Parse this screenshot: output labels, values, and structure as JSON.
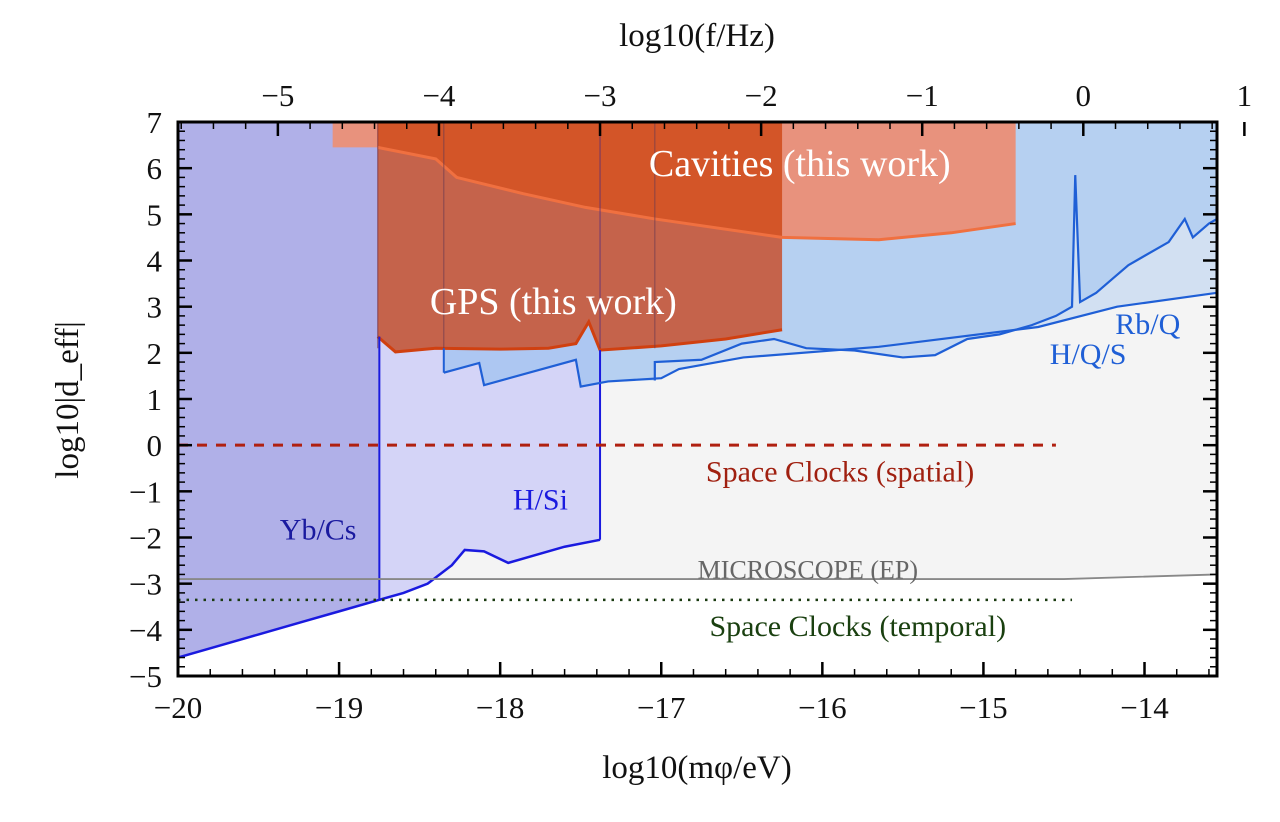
{
  "chart_data": {
    "type": "area",
    "title": "",
    "xlabel": "log10(mφ/eV)",
    "ylabel": "log10|d_eff|",
    "x2label": "log10(f/Hz)",
    "xlim": [
      -20,
      -13.55
    ],
    "ylim": [
      -5,
      7
    ],
    "x2lim": [
      -5.62,
      0.83
    ],
    "xticks": [
      -20,
      -19,
      -18,
      -17,
      -16,
      -15,
      -14
    ],
    "x2ticks": [
      -5,
      -4,
      -3,
      -2,
      -1,
      0,
      1
    ],
    "yticks": [
      -5,
      -4,
      -3,
      -2,
      -1,
      0,
      1,
      2,
      3,
      4,
      5,
      6,
      7
    ],
    "grid": false,
    "regions": [
      {
        "name": "Yb/Cs",
        "color": "#b0b0e8",
        "x_range": [
          -20,
          -18.75
        ],
        "lower": [
          [
            -20,
            -4.6
          ],
          [
            -19.8,
            -4.4
          ],
          [
            -19.6,
            -4.2
          ],
          [
            -19.4,
            -4.0
          ],
          [
            -19.2,
            -3.8
          ],
          [
            -19.0,
            -3.6
          ],
          [
            -18.75,
            -3.35
          ]
        ]
      },
      {
        "name": "H/Si",
        "color": "#d4d4f7",
        "x_range": [
          -18.75,
          -17.38
        ],
        "lower": [
          [
            -18.75,
            -3.35
          ],
          [
            -18.6,
            -3.2
          ],
          [
            -18.45,
            -3.0
          ],
          [
            -18.3,
            -2.6
          ],
          [
            -18.22,
            -2.27
          ],
          [
            -18.1,
            -2.3
          ],
          [
            -17.95,
            -2.55
          ],
          [
            -17.8,
            -2.4
          ],
          [
            -17.6,
            -2.2
          ],
          [
            -17.38,
            -2.05
          ]
        ]
      },
      {
        "name": "H/Q/S",
        "color": "#9fc2f0",
        "lower": [
          [
            -18.35,
            1.57
          ],
          [
            -18.13,
            1.78
          ],
          [
            -18.1,
            1.3
          ],
          [
            -17.53,
            1.85
          ],
          [
            -17.5,
            1.27
          ],
          [
            -17.33,
            1.38
          ],
          [
            -17.0,
            1.45
          ],
          [
            -16.89,
            1.65
          ],
          [
            -16.49,
            1.9
          ],
          [
            -15.65,
            2.13
          ],
          [
            -14.66,
            2.56
          ],
          [
            -14.17,
            3.0
          ],
          [
            -13.55,
            3.3
          ]
        ]
      },
      {
        "name": "Rb/Q",
        "color": "#9fc2f0",
        "lower": [
          [
            -18.35,
            1.57
          ],
          [
            -18.13,
            1.78
          ],
          [
            -18.1,
            1.3
          ],
          [
            -17.53,
            1.85
          ],
          [
            -17.5,
            1.27
          ],
          [
            -17.33,
            1.38
          ],
          [
            -17.04,
            1.4
          ],
          [
            -17.04,
            1.8
          ],
          [
            -16.75,
            1.85
          ],
          [
            -16.5,
            2.2
          ],
          [
            -16.3,
            2.3
          ],
          [
            -16.1,
            2.1
          ],
          [
            -15.8,
            2.05
          ],
          [
            -15.5,
            1.9
          ],
          [
            -15.3,
            1.95
          ],
          [
            -15.1,
            2.3
          ],
          [
            -14.9,
            2.4
          ],
          [
            -14.7,
            2.6
          ],
          [
            -14.55,
            2.8
          ],
          [
            -14.45,
            3.0
          ],
          [
            -14.43,
            5.85
          ],
          [
            -14.4,
            3.1
          ],
          [
            -14.3,
            3.3
          ],
          [
            -14.2,
            3.6
          ],
          [
            -14.1,
            3.9
          ],
          [
            -14.0,
            4.1
          ],
          [
            -13.85,
            4.4
          ],
          [
            -13.75,
            4.9
          ],
          [
            -13.7,
            4.5
          ],
          [
            -13.6,
            4.8
          ],
          [
            -13.55,
            4.9
          ]
        ]
      },
      {
        "name": "GPS (this work)",
        "color": "#c5634b",
        "edge": "#d04010",
        "x_range": [
          -18.76,
          -16.25
        ],
        "lower": [
          [
            -18.76,
            2.35
          ],
          [
            -18.65,
            2.02
          ],
          [
            -18.4,
            2.1
          ],
          [
            -18.0,
            2.08
          ],
          [
            -17.7,
            2.1
          ],
          [
            -17.53,
            2.2
          ],
          [
            -17.45,
            2.67
          ],
          [
            -17.38,
            2.06
          ],
          [
            -17.0,
            2.15
          ],
          [
            -16.6,
            2.3
          ],
          [
            -16.25,
            2.5
          ]
        ]
      },
      {
        "name": "Cavities (this work)",
        "color": "#e8927d",
        "overlap_color": "#d35528",
        "edge": "#f07040",
        "x_range": [
          -19.04,
          -14.8
        ],
        "lower": [
          [
            -19.04,
            6.45
          ],
          [
            -18.76,
            6.45
          ],
          [
            -18.4,
            6.2
          ],
          [
            -18.27,
            5.8
          ],
          [
            -17.86,
            5.45
          ],
          [
            -17.47,
            5.15
          ],
          [
            -17.04,
            4.9
          ],
          [
            -16.25,
            4.5
          ],
          [
            -15.65,
            4.45
          ],
          [
            -15.2,
            4.6
          ],
          [
            -14.8,
            4.8
          ]
        ]
      }
    ],
    "lines": [
      {
        "name": "Space Clocks (spatial)",
        "value": 0,
        "x_range": [
          -20,
          -14.55
        ],
        "style": "dashed",
        "color": "#b02010"
      },
      {
        "name": "MICROSCOPE (EP)",
        "points": [
          [
            -20,
            -2.9
          ],
          [
            -14.5,
            -2.9
          ],
          [
            -13.55,
            -2.8
          ]
        ],
        "style": "solid",
        "color": "#888888"
      },
      {
        "name": "Space Clocks (temporal)",
        "value": -3.35,
        "x_range": [
          -20,
          -14.45
        ],
        "style": "dotted",
        "color": "#1a3a10"
      }
    ],
    "annotations": [
      {
        "text": "Cavities (this work)",
        "x": -16.14,
        "y": 6.07,
        "color": "#ffffff"
      },
      {
        "text": "GPS (this work)",
        "x": -17.67,
        "y": 3.08,
        "color": "#ffffff"
      },
      {
        "text": "Rb/Q",
        "x": -13.98,
        "y": 2.65,
        "color": "#1f5fd6"
      },
      {
        "text": "H/Q/S",
        "x": -14.35,
        "y": 2.0,
        "color": "#1f5fd6"
      },
      {
        "text": "Space Clocks (spatial)",
        "x": -15.89,
        "y": -0.55,
        "color": "#a02010"
      },
      {
        "text": "H/Si",
        "x": -17.75,
        "y": -1.15,
        "color": "#1a1adf"
      },
      {
        "text": "Yb/Cs",
        "x": -19.13,
        "y": -1.8,
        "color": "#1a1a9f"
      },
      {
        "text": "MICROSCOPE (EP)",
        "x": -16.09,
        "y": -2.65,
        "color": "#666666"
      },
      {
        "text": "Space Clocks (temporal)",
        "x": -15.78,
        "y": -3.9,
        "color": "#1a4010"
      }
    ],
    "colors": {
      "background_excluded": "#f4f4f4",
      "curve_dark_blue": "#1a1adf",
      "curve_blue": "#1f5fd6"
    }
  }
}
